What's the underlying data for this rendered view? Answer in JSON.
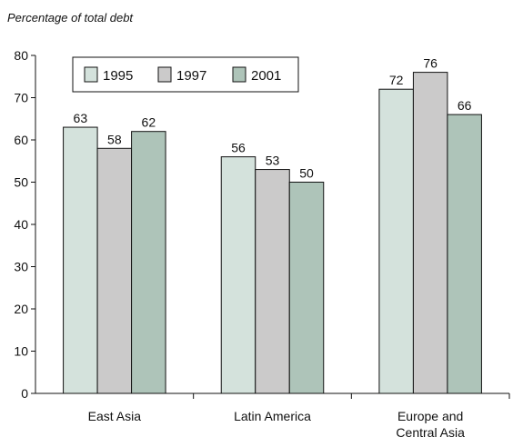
{
  "chart_data": {
    "type": "bar",
    "title": "",
    "subtitle": "Percentage of total debt",
    "xlabel": "",
    "ylabel": "",
    "ylim": [
      0,
      80
    ],
    "yticks": [
      "0",
      "10",
      "20",
      "30",
      "40",
      "50",
      "60",
      "70",
      "80"
    ],
    "categories": [
      "East Asia",
      "Latin America",
      "Europe and Central Asia"
    ],
    "category_lines": [
      [
        "East Asia"
      ],
      [
        "Latin America"
      ],
      [
        "Europe and",
        "Central Asia"
      ]
    ],
    "series": [
      {
        "name": "1995",
        "values": [
          63,
          56,
          72
        ],
        "labels": [
          "63",
          "56",
          "72"
        ],
        "color": "#d4e2dc"
      },
      {
        "name": "1997",
        "values": [
          58,
          53,
          76
        ],
        "labels": [
          "58",
          "53",
          "76"
        ],
        "color": "#cbcaca"
      },
      {
        "name": "2001",
        "values": [
          62,
          50,
          66
        ],
        "labels": [
          "62",
          "50",
          "66"
        ],
        "color": "#aec4b9"
      }
    ],
    "legend_position": "top-left",
    "grid": false
  }
}
